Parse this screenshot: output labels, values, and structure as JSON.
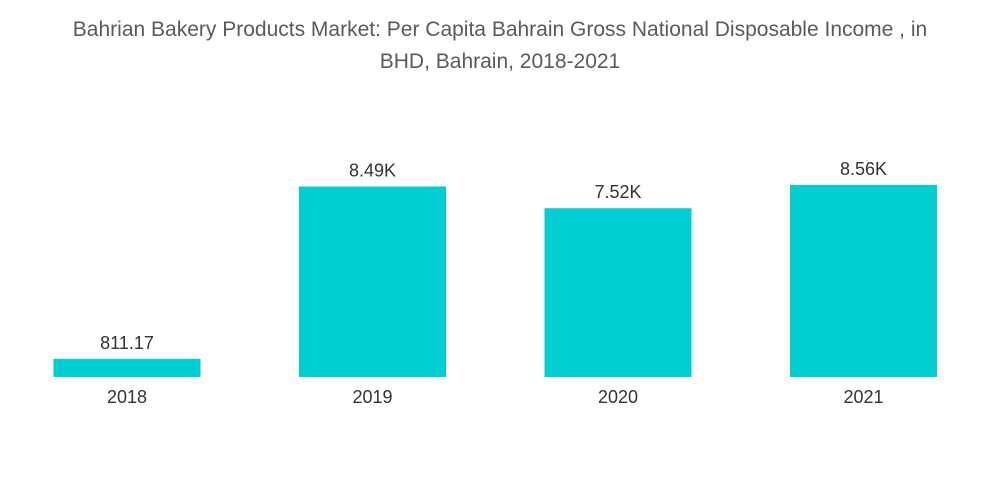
{
  "chart_data": {
    "type": "bar",
    "title_lines": [
      "Bahrian Bakery Products Market: Per Capita Bahrain Gross National Disposable Income , in",
      "BHD, Bahrain, 2018-2021"
    ],
    "categories": [
      "2018",
      "2019",
      "2020",
      "2021"
    ],
    "values": [
      811.17,
      8490,
      7520,
      8560
    ],
    "value_labels": [
      "811.17",
      "8.49K",
      "7.52K",
      "8.56K"
    ],
    "ylim": [
      0,
      9000
    ],
    "bar_color": "#00CED1",
    "grid": false,
    "legend": "none"
  }
}
